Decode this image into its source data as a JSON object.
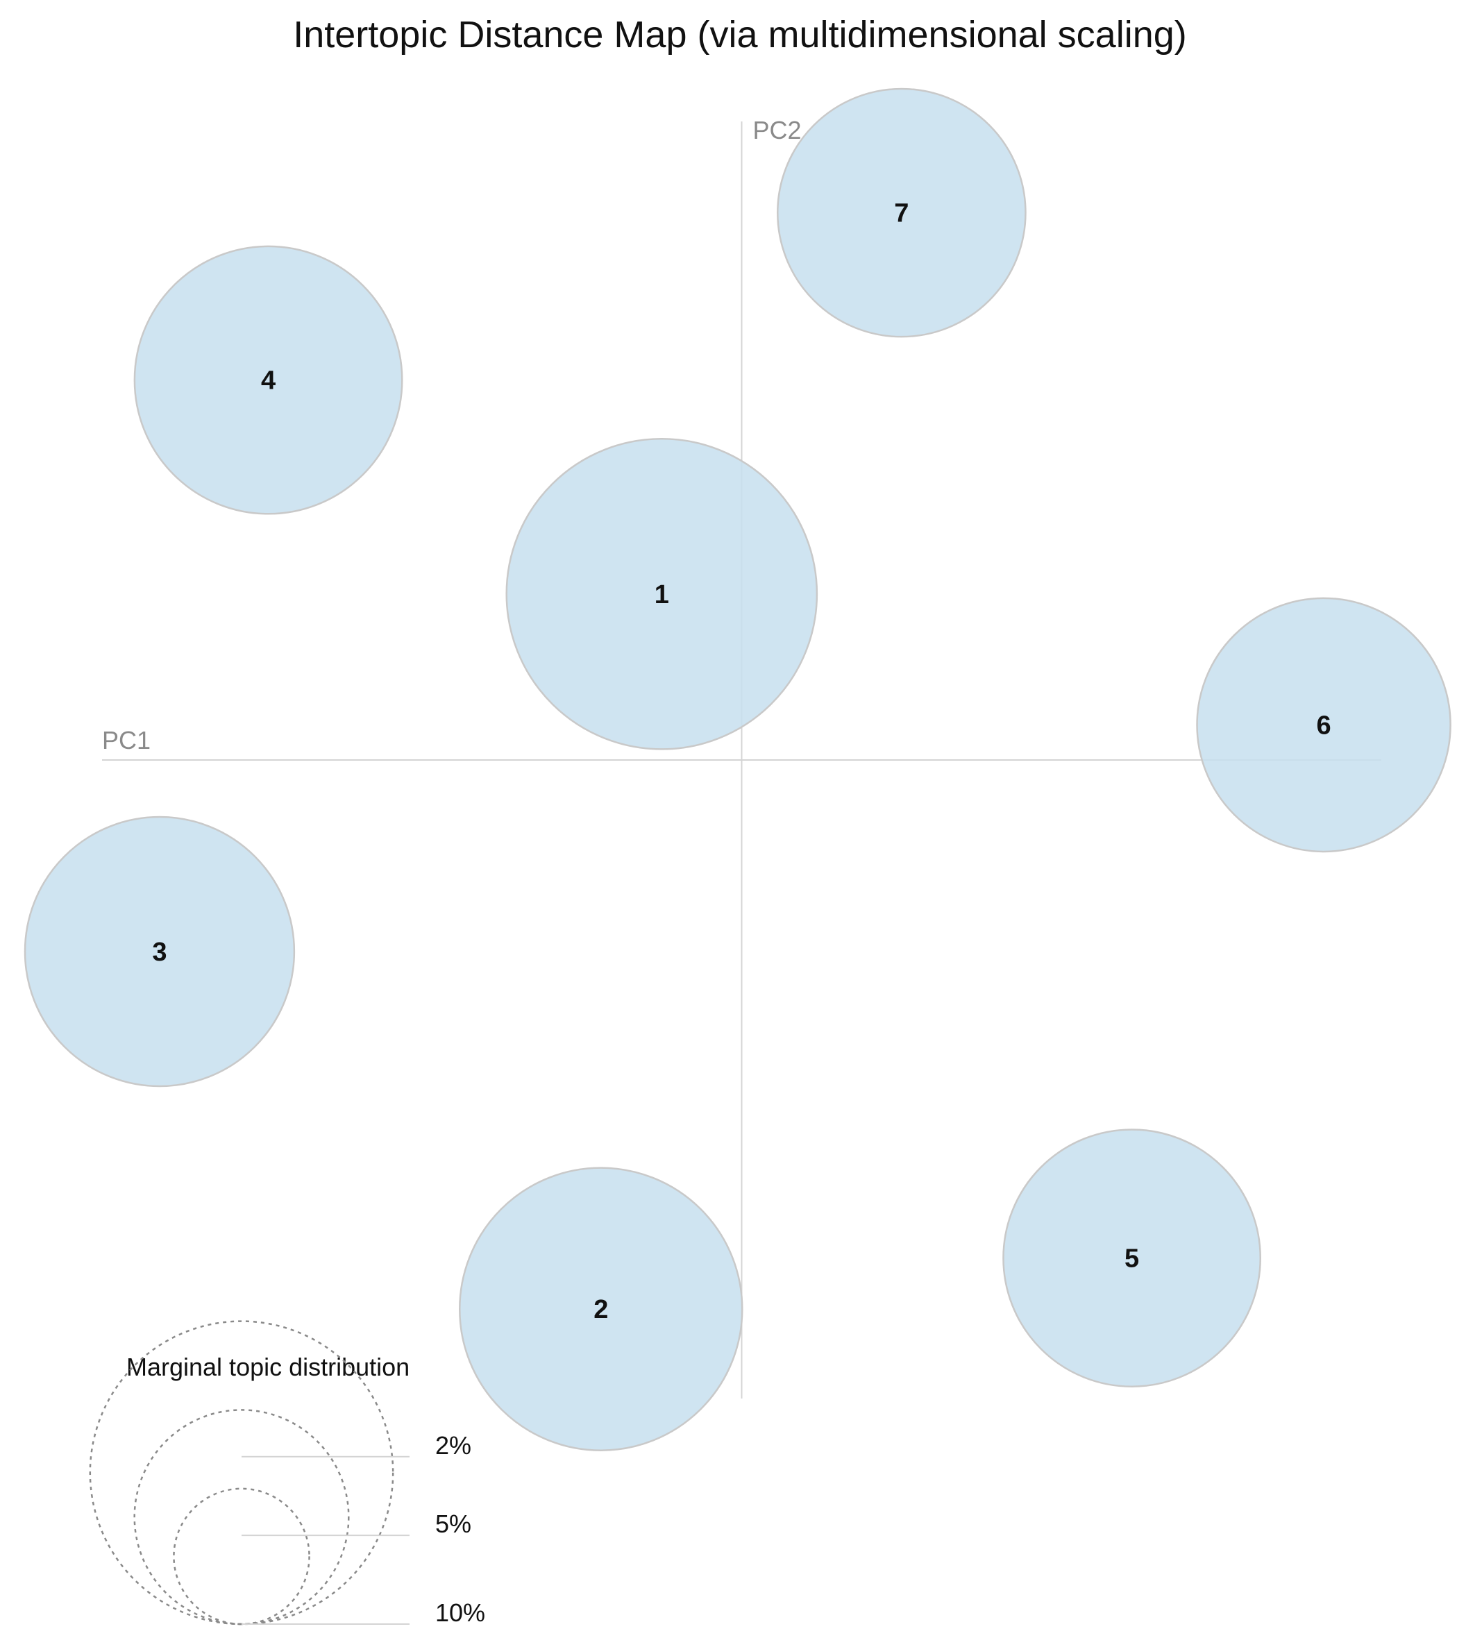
{
  "chart_data": {
    "type": "scatter",
    "title": "Intertopic Distance Map (via multidimensional scaling)",
    "xlabel": "PC1",
    "ylabel": "PC2",
    "xlim": [
      -1,
      1
    ],
    "ylim": [
      -1,
      1
    ],
    "grid": false,
    "marker_color": "#c7dfef",
    "points": [
      {
        "label": "1",
        "x": -0.125,
        "y": 0.26,
        "share": 0.105
      },
      {
        "label": "2",
        "x": -0.22,
        "y": -0.86,
        "share": 0.087
      },
      {
        "label": "3",
        "x": -0.91,
        "y": -0.3,
        "share": 0.079
      },
      {
        "label": "4",
        "x": -0.74,
        "y": 0.595,
        "share": 0.078
      },
      {
        "label": "5",
        "x": 0.61,
        "y": -0.78,
        "share": 0.072
      },
      {
        "label": "6",
        "x": 0.91,
        "y": 0.055,
        "share": 0.07
      },
      {
        "label": "7",
        "x": 0.25,
        "y": 0.857,
        "share": 0.067
      }
    ],
    "legend": {
      "title": "Marginal topic distribution",
      "placement": "bottom-left",
      "levels": [
        {
          "label": "2%",
          "share": 0.02
        },
        {
          "label": "5%",
          "share": 0.05
        },
        {
          "label": "10%",
          "share": 0.1
        }
      ]
    }
  }
}
